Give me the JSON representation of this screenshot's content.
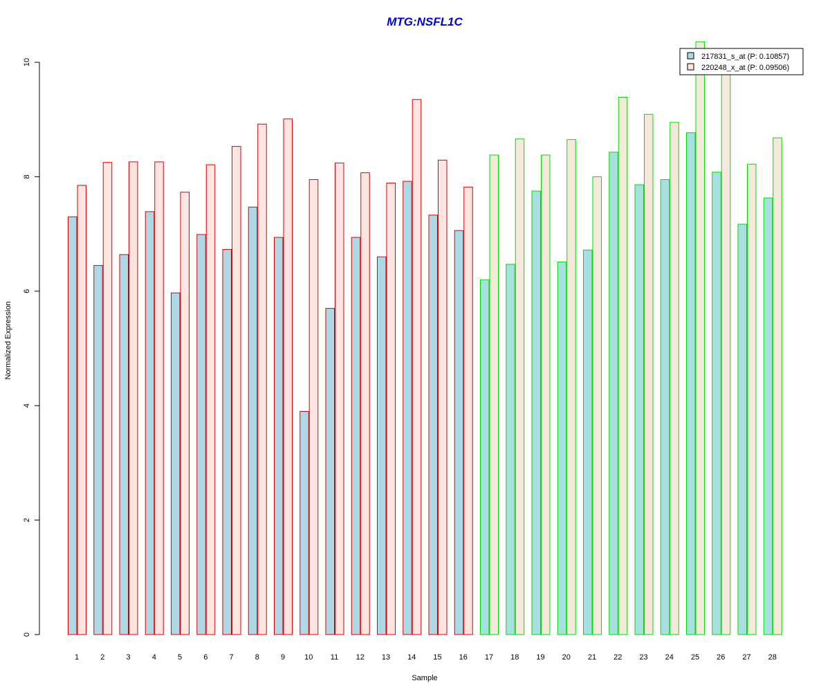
{
  "chart_data": {
    "type": "bar",
    "title": "MTG:NSFL1C",
    "xlabel": "Sample",
    "ylabel": "Normalized Expression",
    "ylim": [
      0,
      10
    ],
    "yticks": [
      "0",
      "2",
      "4",
      "6",
      "8",
      "10"
    ],
    "categories": [
      "1",
      "2",
      "3",
      "4",
      "5",
      "6",
      "7",
      "8",
      "9",
      "10",
      "11",
      "12",
      "13",
      "14",
      "15",
      "16",
      "17",
      "18",
      "19",
      "20",
      "21",
      "22",
      "23",
      "24",
      "25",
      "26",
      "27",
      "28"
    ],
    "series": [
      {
        "name": "217831_s_at (P: 0.10857)",
        "values": [
          7.3,
          6.45,
          6.64,
          7.39,
          5.97,
          6.99,
          6.73,
          7.47,
          6.94,
          3.9,
          5.7,
          6.94,
          6.6,
          7.92,
          7.33,
          7.06,
          6.2,
          6.47,
          7.75,
          6.51,
          6.72,
          8.43,
          7.86,
          7.95,
          8.77,
          8.08,
          7.17,
          7.63
        ]
      },
      {
        "name": "220248_x_at (P: 0.09506)",
        "values": [
          7.85,
          8.25,
          8.26,
          8.26,
          7.73,
          8.21,
          8.53,
          8.92,
          9.01,
          7.95,
          8.24,
          8.07,
          7.89,
          9.35,
          8.29,
          7.82,
          8.38,
          8.66,
          8.38,
          8.65,
          8.0,
          9.39,
          9.09,
          8.95,
          10.36,
          9.85,
          8.22,
          8.68
        ]
      }
    ],
    "groups": [
      {
        "samples": "1-16",
        "border_color": "#dd0000"
      },
      {
        "samples": "17-28",
        "border_color": "#00dd00"
      }
    ],
    "legend_position": "top-right",
    "grid": false
  },
  "colors": {
    "title": "#0000cc",
    "series1_fill": "#add8e6",
    "series2_fill_group1": "#ffe4e1",
    "series2_fill_group2": "#f5e9dc",
    "series1_fill_group2": "#a8dfe0"
  }
}
